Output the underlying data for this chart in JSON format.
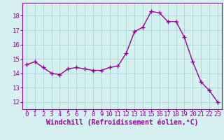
{
  "x": [
    0,
    1,
    2,
    3,
    4,
    5,
    6,
    7,
    8,
    9,
    10,
    11,
    12,
    13,
    14,
    15,
    16,
    17,
    18,
    19,
    20,
    21,
    22,
    23
  ],
  "y": [
    14.6,
    14.8,
    14.4,
    14.0,
    13.9,
    14.3,
    14.4,
    14.3,
    14.2,
    14.2,
    14.4,
    14.5,
    15.4,
    16.9,
    17.2,
    18.3,
    18.2,
    17.6,
    17.6,
    16.5,
    14.8,
    13.4,
    12.8,
    12.0
  ],
  "line_color": "#990099",
  "marker": "+",
  "marker_size": 4,
  "marker_lw": 1.0,
  "bg_color": "#d5f0f0",
  "grid_color": "#aad8d8",
  "xlabel": "Windchill (Refroidissement éolien,°C)",
  "ylabel": "",
  "ylim": [
    11.5,
    18.9
  ],
  "xlim": [
    -0.5,
    23.5
  ],
  "yticks": [
    12,
    13,
    14,
    15,
    16,
    17,
    18
  ],
  "xticks": [
    0,
    1,
    2,
    3,
    4,
    5,
    6,
    7,
    8,
    9,
    10,
    11,
    12,
    13,
    14,
    15,
    16,
    17,
    18,
    19,
    20,
    21,
    22,
    23
  ],
  "tick_color": "#990099",
  "label_color": "#990099",
  "axis_color": "#990099",
  "font_size": 6.5,
  "xlabel_fontsize": 7,
  "linewidth": 1.0
}
